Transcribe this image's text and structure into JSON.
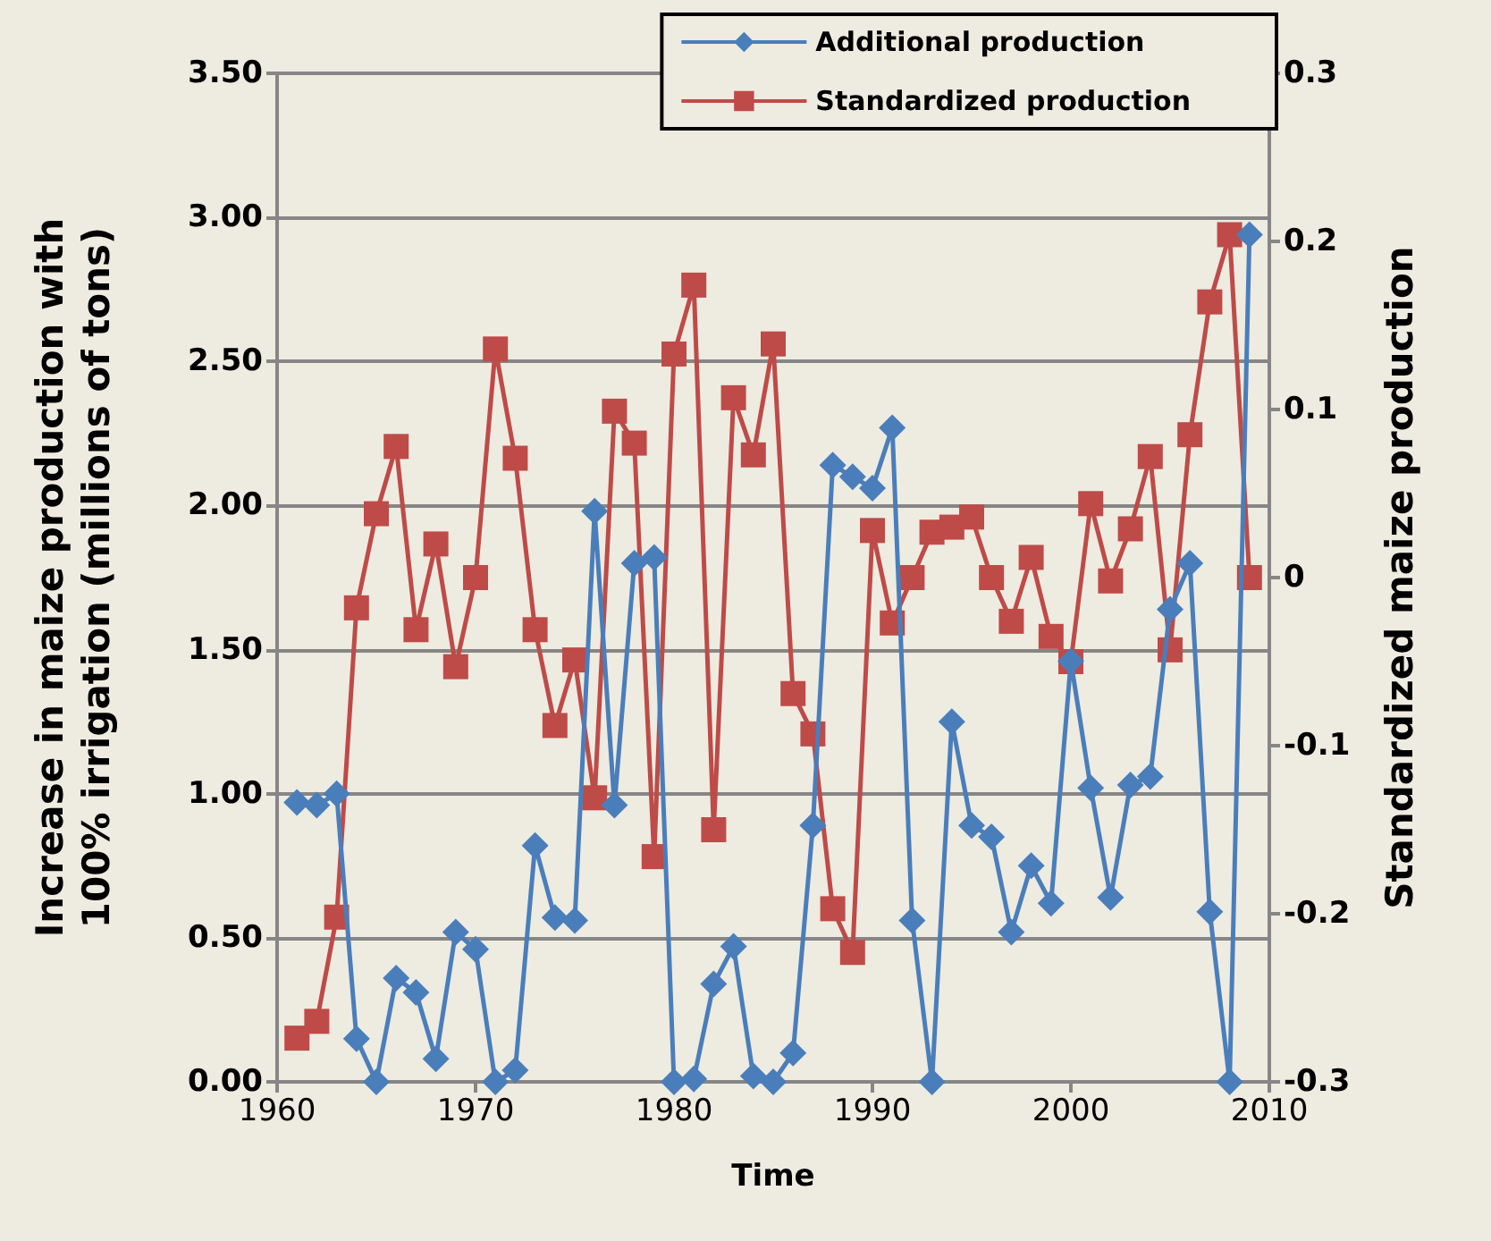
{
  "chart_data": {
    "type": "line",
    "xlabel": "Time",
    "ylabel": "Increase in maize production with 100% irrigation (millions of tons)",
    "y2label": "Standardized maize production",
    "x": [
      1961,
      1962,
      1963,
      1964,
      1965,
      1966,
      1967,
      1968,
      1969,
      1970,
      1971,
      1972,
      1973,
      1974,
      1975,
      1976,
      1977,
      1978,
      1979,
      1980,
      1981,
      1982,
      1983,
      1984,
      1985,
      1986,
      1987,
      1988,
      1989,
      1990,
      1991,
      1992,
      1993,
      1994,
      1995,
      1996,
      1997,
      1998,
      1999,
      2000,
      2001,
      2002,
      2003,
      2004,
      2005,
      2006,
      2007,
      2008,
      2009
    ],
    "series": [
      {
        "name": "Additional production",
        "color": "#4a7ebb",
        "marker": "diamond",
        "values": [
          0.97,
          0.96,
          1.0,
          0.15,
          0.0,
          0.36,
          0.31,
          0.08,
          0.52,
          0.46,
          0.0,
          0.04,
          0.82,
          0.57,
          0.56,
          1.98,
          0.96,
          1.8,
          1.82,
          0.0,
          0.01,
          0.34,
          0.47,
          0.02,
          0.0,
          0.1,
          0.89,
          2.14,
          2.1,
          2.06,
          2.27,
          0.56,
          0.0,
          1.25,
          0.89,
          0.85,
          0.52,
          0.75,
          0.62,
          1.46,
          1.02,
          0.64,
          1.03,
          1.06,
          1.64,
          1.8,
          0.59,
          0.0,
          2.94
        ]
      },
      {
        "name": "Standardized production",
        "color": "#be4b48",
        "marker": "square",
        "axis": "y2",
        "values": [
          -0.274,
          -0.264,
          -0.202,
          -0.018,
          0.038,
          0.078,
          -0.031,
          0.02,
          -0.053,
          0.0,
          0.136,
          0.071,
          -0.031,
          -0.088,
          -0.049,
          -0.131,
          0.099,
          0.08,
          -0.166,
          0.133,
          0.174,
          -0.15,
          0.107,
          0.073,
          0.139,
          -0.069,
          -0.093,
          -0.197,
          -0.223,
          0.028,
          -0.027,
          0.0,
          0.027,
          0.03,
          0.036,
          0.0,
          -0.026,
          0.012,
          -0.035,
          -0.05,
          0.044,
          -0.002,
          0.029,
          0.072,
          -0.043,
          0.085,
          0.164,
          0.204,
          0.0
        ]
      }
    ],
    "xlim": [
      1960,
      2010
    ],
    "xticks": [
      1960,
      1970,
      1980,
      1990,
      2000,
      2010
    ],
    "ylim": [
      0,
      3.5
    ],
    "yticks": [
      {
        "value": 0,
        "label": "0.00"
      },
      {
        "value": 0.5,
        "label": "0.50"
      },
      {
        "value": 1,
        "label": "1.00"
      },
      {
        "value": 1.5,
        "label": "1.50"
      },
      {
        "value": 2,
        "label": "2.00"
      },
      {
        "value": 2.5,
        "label": "2.50"
      },
      {
        "value": 3,
        "label": "3.00"
      },
      {
        "value": 3.5,
        "label": "3.50"
      }
    ],
    "y2lim": [
      -0.3,
      0.3
    ],
    "y2ticks": [
      -0.3,
      -0.2,
      -0.1,
      0,
      0.1,
      0.2,
      0.3
    ],
    "grid": "y",
    "legend": "top right",
    "line_style": "solid"
  }
}
